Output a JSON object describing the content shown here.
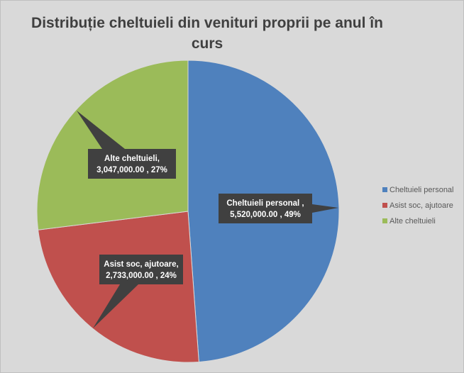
{
  "chart_data": {
    "type": "pie",
    "title_line1": "Distribuție cheltuieli din venituri proprii pe anul în",
    "title_line2": "curs",
    "slices": [
      {
        "name": "Cheltuieli personal",
        "value": 5520000,
        "value_label": "5,520,000.00",
        "percent_label": "49%",
        "color": "#4f81bd",
        "label_line1": "Cheltuieli personal ,",
        "label_line2": "5,520,000.00 , 49%"
      },
      {
        "name": "Asist soc, ajutoare",
        "value": 2733000,
        "value_label": "2,733,000.00",
        "percent_label": "24%",
        "color": "#c0504d",
        "label_line1": "Asist soc, ajutoare,",
        "label_line2": "2,733,000.00 , 24%"
      },
      {
        "name": "Alte cheltuieli",
        "value": 3047000,
        "value_label": "3,047,000.00",
        "percent_label": "27%",
        "color": "#9bbb59",
        "label_line1": "Alte cheltuieli,",
        "label_line2": "3,047,000.00 , 27%"
      }
    ],
    "legend": {
      "placement": "right",
      "items": [
        "Cheltuieli personal",
        "Asist soc, ajutoare",
        "Alte cheltuieli"
      ]
    }
  }
}
